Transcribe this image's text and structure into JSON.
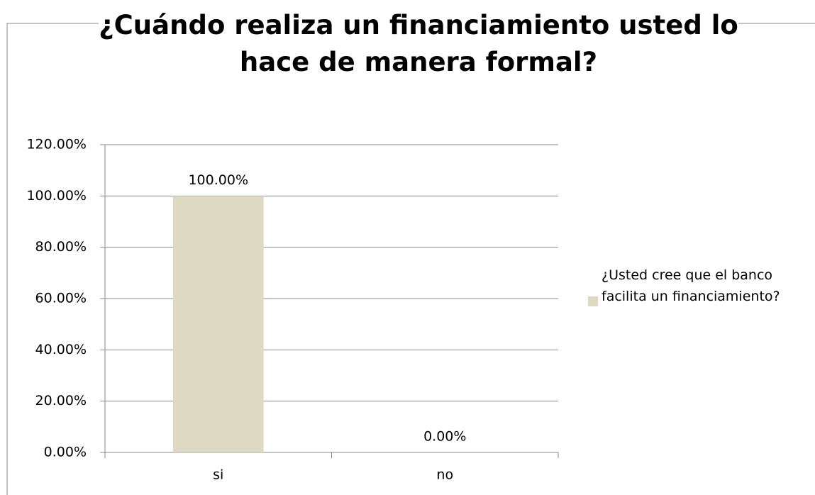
{
  "chart_data": {
    "type": "bar",
    "title": "¿Cuándo realiza un financiamiento usted lo hace de manera formal?",
    "categories": [
      "si",
      "no"
    ],
    "series": [
      {
        "name": "¿Usted cree que el banco facilita un financiamiento?",
        "color": "#ddd9c3",
        "values": [
          100,
          0
        ],
        "value_labels": [
          "100.00%",
          "0.00%"
        ]
      }
    ],
    "ylim": [
      0,
      120
    ],
    "yticks": [
      {
        "value": 0,
        "label": "0.00%"
      },
      {
        "value": 20,
        "label": "20.00%"
      },
      {
        "value": 40,
        "label": "40.00%"
      },
      {
        "value": 60,
        "label": "60.00%"
      },
      {
        "value": 80,
        "label": "80.00%"
      },
      {
        "value": 100,
        "label": "100.00%"
      },
      {
        "value": 120,
        "label": "120.00%"
      }
    ],
    "grid": true,
    "legend": "right"
  }
}
